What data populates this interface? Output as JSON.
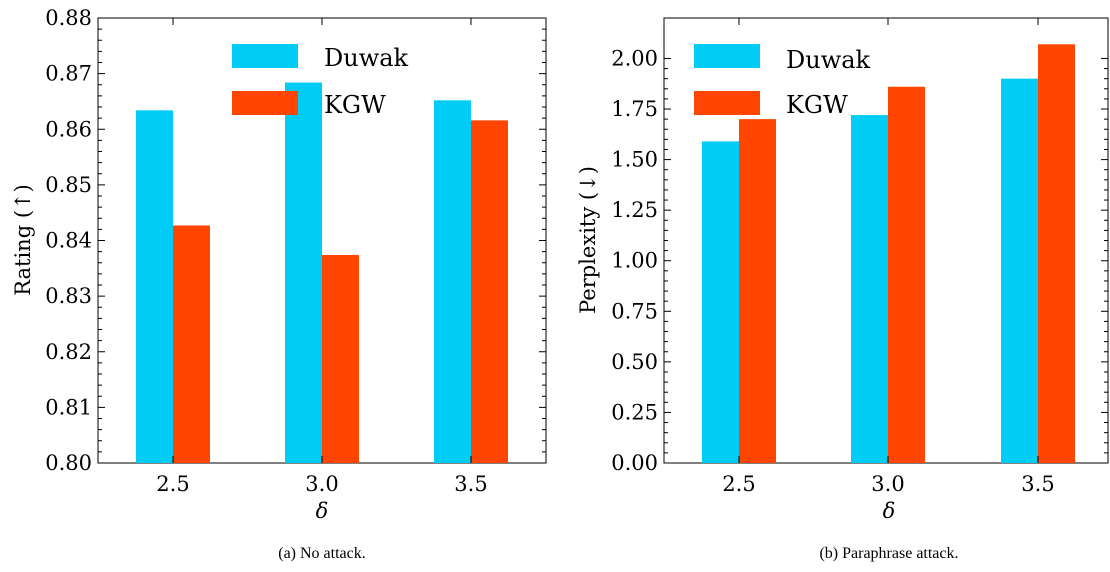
{
  "colors": {
    "duwak": "#00CCF5",
    "kgw": "#FF4500"
  },
  "chart_data": [
    {
      "type": "bar",
      "caption": "(a) No attack.",
      "xlabel": "δ",
      "ylabel": "Rating (↑)",
      "categories": [
        "2.5",
        "3.0",
        "3.5"
      ],
      "ylim": [
        0.8,
        0.88
      ],
      "yticks": [
        "0.80",
        "0.81",
        "0.82",
        "0.83",
        "0.84",
        "0.85",
        "0.86",
        "0.87",
        "0.88"
      ],
      "legend_position": "upper-right",
      "series": [
        {
          "name": "Duwak",
          "values": [
            0.8634,
            0.8684,
            0.8652
          ]
        },
        {
          "name": "KGW",
          "values": [
            0.8427,
            0.8374,
            0.8616
          ]
        }
      ]
    },
    {
      "type": "bar",
      "caption": "(b) Paraphrase attack.",
      "xlabel": "δ",
      "ylabel": "Perplexity (↓)",
      "categories": [
        "2.5",
        "3.0",
        "3.5"
      ],
      "ylim": [
        0,
        2.2
      ],
      "yticks": [
        "0.00",
        "0.25",
        "0.50",
        "0.75",
        "1.00",
        "1.25",
        "1.50",
        "1.75",
        "2.00"
      ],
      "legend_position": "upper-left",
      "series": [
        {
          "name": "Duwak",
          "values": [
            1.59,
            1.72,
            1.9
          ]
        },
        {
          "name": "KGW",
          "values": [
            1.7,
            1.86,
            2.07
          ]
        }
      ]
    }
  ]
}
